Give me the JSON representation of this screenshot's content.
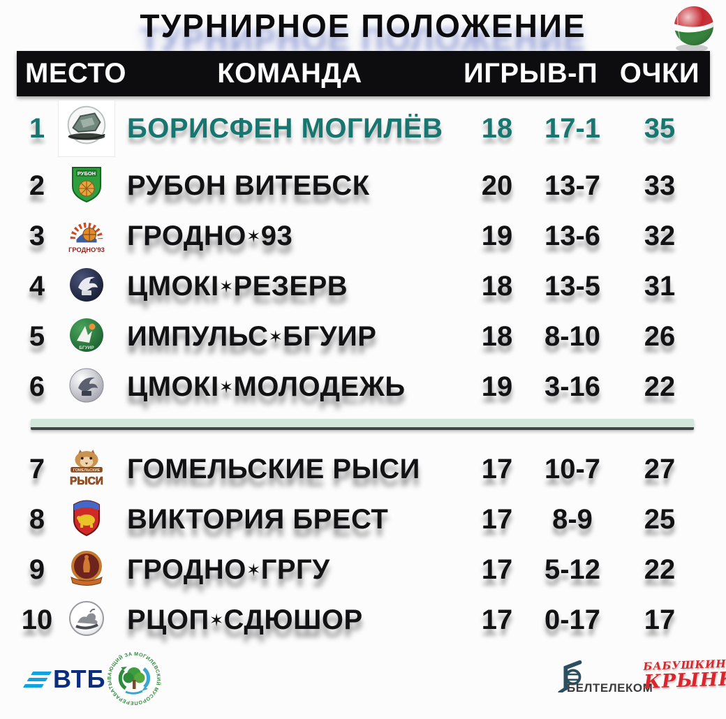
{
  "title": "ТУРНИРНОЕ ПОЛОЖЕНИЕ",
  "header": {
    "place": "МЕСТО",
    "team": "КОМАНДА",
    "games": "ИГРЫ",
    "wl": "В-П",
    "points": "ОЧКИ"
  },
  "standings": [
    {
      "place": "1",
      "team": "БОРИСФЕН МОГИЛЁВ",
      "games": "18",
      "wl": "17-1",
      "points": "35",
      "logo": "borisfen",
      "highlight": true
    },
    {
      "place": "2",
      "team": "РУБОН ВИТЕБСК",
      "games": "20",
      "wl": "13-7",
      "points": "33",
      "logo": "rubon",
      "highlight": false
    },
    {
      "place": "3",
      "team": "ГРОДНО*93",
      "games": "19",
      "wl": "13-6",
      "points": "32",
      "logo": "grodno93",
      "highlight": false
    },
    {
      "place": "4",
      "team": "ЦМОКI*РЕЗЕРВ",
      "games": "18",
      "wl": "13-5",
      "points": "31",
      "logo": "tsmoki-dark",
      "highlight": false
    },
    {
      "place": "5",
      "team": "ИМПУЛЬС*БГУИР",
      "games": "18",
      "wl": "8-10",
      "points": "26",
      "logo": "impuls",
      "highlight": false
    },
    {
      "place": "6",
      "team": "ЦМОКI*МОЛОДЕЖЬ",
      "games": "19",
      "wl": "3-16",
      "points": "22",
      "logo": "tsmoki-light",
      "highlight": false
    },
    {
      "place": "7",
      "team": "ГОМЕЛЬСКИЕ РЫСИ",
      "games": "17",
      "wl": "10-7",
      "points": "27",
      "logo": "rysi",
      "highlight": false
    },
    {
      "place": "8",
      "team": "ВИКТОРИЯ БРЕСТ",
      "games": "17",
      "wl": "8-9",
      "points": "25",
      "logo": "viktoria",
      "highlight": false
    },
    {
      "place": "9",
      "team": "ГРОДНО*ГРГУ",
      "games": "17",
      "wl": "5-12",
      "points": "22",
      "logo": "grgu",
      "highlight": false
    },
    {
      "place": "10",
      "team": "РЦОП*СДЮШОР",
      "games": "17",
      "wl": "0-17",
      "points": "17",
      "logo": "rcop",
      "highlight": false
    }
  ],
  "playoff_cutoff_after": 6,
  "logo_text": {
    "rubon": "РУБОН",
    "grodno93": "ГРОДНО'93",
    "impuls_bottom": "БГУИР",
    "rysi_banner": "ГОМЕЛЬСКИЕ",
    "rysi_main": "РЫСИ"
  },
  "sponsors": {
    "vtb": "ВТБ",
    "recycling_ring_text": "МОГИЛЕВСКИЙ  МУСОРОПЕРЕРАБАТЫВАЮЩИЙ  ЗАВОД",
    "beltelecom": "БЕЛТЕЛЕКОМ",
    "babushkina_line1": "БАБУШКИНА",
    "babushkina_line2": "КРЫНКА"
  },
  "colors": {
    "highlight_teal": "#177670",
    "header_bg": "#0d0d0f",
    "divider_bar": "#d3e6dc",
    "title_reflection": "#6473c3",
    "text_black": "#121214"
  },
  "chart_data": {
    "type": "table",
    "title": "ТУРНИРНОЕ ПОЛОЖЕНИЕ",
    "columns": [
      "МЕСТО",
      "КОМАНДА",
      "ИГРЫ",
      "В-П",
      "ОЧКИ"
    ],
    "rows": [
      [
        1,
        "БОРИСФЕН МОГИЛЁВ",
        18,
        "17-1",
        35
      ],
      [
        2,
        "РУБОН ВИТЕБСК",
        20,
        "13-7",
        33
      ],
      [
        3,
        "ГРОДНО*93",
        19,
        "13-6",
        32
      ],
      [
        4,
        "ЦМОКI*РЕЗЕРВ",
        18,
        "13-5",
        31
      ],
      [
        5,
        "ИМПУЛЬС*БГУИР",
        18,
        "8-10",
        26
      ],
      [
        6,
        "ЦМОКI*МОЛОДЕЖЬ",
        19,
        "3-16",
        22
      ],
      [
        7,
        "ГОМЕЛЬСКИЕ РЫСИ",
        17,
        "10-7",
        27
      ],
      [
        8,
        "ВИКТОРИЯ БРЕСТ",
        17,
        "8-9",
        25
      ],
      [
        9,
        "ГРОДНО*ГРГУ",
        17,
        "5-12",
        22
      ],
      [
        10,
        "РЦОП*СДЮШОР",
        17,
        "0-17",
        17
      ]
    ],
    "highlighted_row": 1,
    "divider_after_row": 6
  }
}
